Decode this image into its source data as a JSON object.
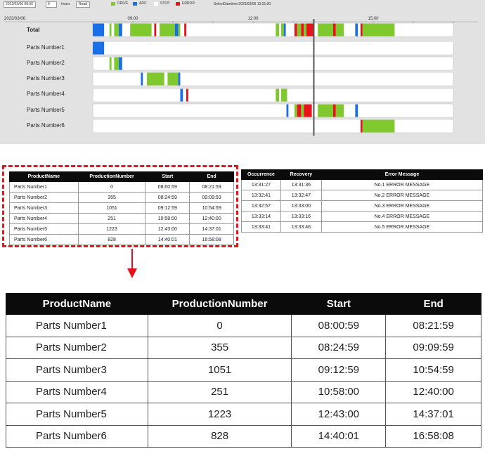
{
  "toolbar": {
    "date_value": "2023/03/06 08:00",
    "hours_value": "9",
    "hours_label": "hours",
    "read_button": "Read",
    "select_datetime": "SelectDatetime:2023/03/06 13:31:00"
  },
  "legend": [
    {
      "label": "DRIVE",
      "color": "#7fc92f"
    },
    {
      "label": "ADC",
      "color": "#1a6fe6"
    },
    {
      "label": "STOP",
      "color": "#ffffff"
    },
    {
      "label": "ERROR",
      "color": "#e8131a"
    }
  ],
  "timeline": {
    "date": "2023/03/06",
    "ticks": [
      "09:00",
      "12:00",
      "15:00"
    ],
    "rows": [
      {
        "label": "Total",
        "segments": [
          {
            "s": "08:00:00",
            "e": "08:17:00",
            "state": "ADC"
          },
          {
            "s": "08:25:00",
            "e": "08:28:00",
            "state": "DRIVE"
          },
          {
            "s": "08:28:00",
            "e": "08:32:00",
            "state": "STOP"
          },
          {
            "s": "08:32:00",
            "e": "08:39:00",
            "state": "DRIVE"
          },
          {
            "s": "08:39:00",
            "e": "08:44:00",
            "state": "ADC"
          },
          {
            "s": "08:56:00",
            "e": "09:28:00",
            "state": "DRIVE"
          },
          {
            "s": "09:32:00",
            "e": "09:35:00",
            "state": "ERROR"
          },
          {
            "s": "09:40:00",
            "e": "10:03:00",
            "state": "DRIVE"
          },
          {
            "s": "10:03:00",
            "e": "10:08:00",
            "state": "ADC"
          },
          {
            "s": "10:08:00",
            "e": "10:11:00",
            "state": "DRIVE"
          },
          {
            "s": "10:17:00",
            "e": "10:20:00",
            "state": "ERROR"
          },
          {
            "s": "12:34:00",
            "e": "12:39:00",
            "state": "DRIVE"
          },
          {
            "s": "12:42:00",
            "e": "12:46:00",
            "state": "DRIVE"
          },
          {
            "s": "12:46:00",
            "e": "12:49:00",
            "state": "ADC"
          },
          {
            "s": "13:02:00",
            "e": "13:06:00",
            "state": "ERROR"
          },
          {
            "s": "13:06:00",
            "e": "13:12:00",
            "state": "DRIVE"
          },
          {
            "s": "13:12:00",
            "e": "13:16:00",
            "state": "ERROR"
          },
          {
            "s": "13:16:00",
            "e": "13:20:00",
            "state": "DRIVE"
          },
          {
            "s": "13:20:00",
            "e": "13:31:00",
            "state": "ERROR"
          },
          {
            "s": "13:37:00",
            "e": "14:00:00",
            "state": "DRIVE"
          },
          {
            "s": "14:00:00",
            "e": "14:04:00",
            "state": "ERROR"
          },
          {
            "s": "14:04:00",
            "e": "14:16:00",
            "state": "DRIVE"
          },
          {
            "s": "14:33:00",
            "e": "14:37:00",
            "state": "ADC"
          },
          {
            "s": "14:37:00",
            "e": "14:41:00",
            "state": "STOP"
          },
          {
            "s": "14:41:00",
            "e": "14:44:00",
            "state": "ERROR"
          },
          {
            "s": "14:44:00",
            "e": "14:50:00",
            "state": "DRIVE"
          },
          {
            "s": "14:50:00",
            "e": "15:32:00",
            "state": "DRIVE"
          }
        ]
      },
      {
        "label": "Parts Number1",
        "segments": [
          {
            "s": "08:00:00",
            "e": "08:17:00",
            "state": "ADC"
          }
        ]
      },
      {
        "label": "Parts Number2",
        "segments": [
          {
            "s": "08:25:00",
            "e": "08:28:00",
            "state": "DRIVE"
          },
          {
            "s": "08:32:00",
            "e": "08:39:00",
            "state": "DRIVE"
          },
          {
            "s": "08:39:00",
            "e": "08:44:00",
            "state": "ADC"
          }
        ]
      },
      {
        "label": "Parts Number3",
        "segments": [
          {
            "s": "09:12:00",
            "e": "09:15:00",
            "state": "ADC"
          },
          {
            "s": "09:21:00",
            "e": "09:47:00",
            "state": "DRIVE"
          },
          {
            "s": "09:52:00",
            "e": "10:08:00",
            "state": "DRIVE"
          },
          {
            "s": "10:08:00",
            "e": "10:11:00",
            "state": "ADC"
          }
        ]
      },
      {
        "label": "Parts Number4",
        "segments": [
          {
            "s": "10:11:00",
            "e": "10:15:00",
            "state": "ADC"
          },
          {
            "s": "10:20:00",
            "e": "10:23:00",
            "state": "ERROR"
          },
          {
            "s": "12:34:00",
            "e": "12:39:00",
            "state": "DRIVE"
          },
          {
            "s": "12:42:00",
            "e": "12:51:00",
            "state": "DRIVE"
          }
        ]
      },
      {
        "label": "Parts Number5",
        "segments": [
          {
            "s": "12:50:00",
            "e": "12:53:00",
            "state": "ADC"
          },
          {
            "s": "13:02:00",
            "e": "13:06:00",
            "state": "DRIVE"
          },
          {
            "s": "13:06:00",
            "e": "13:12:00",
            "state": "ERROR"
          },
          {
            "s": "13:12:00",
            "e": "13:16:00",
            "state": "DRIVE"
          },
          {
            "s": "13:16:00",
            "e": "13:28:00",
            "state": "ERROR"
          },
          {
            "s": "13:37:00",
            "e": "14:00:00",
            "state": "DRIVE"
          },
          {
            "s": "14:00:00",
            "e": "14:04:00",
            "state": "ERROR"
          },
          {
            "s": "14:04:00",
            "e": "14:16:00",
            "state": "DRIVE"
          },
          {
            "s": "14:33:00",
            "e": "14:37:00",
            "state": "ADC"
          }
        ]
      },
      {
        "label": "Parts Number6",
        "segments": [
          {
            "s": "14:41:00",
            "e": "14:44:00",
            "state": "ERROR"
          },
          {
            "s": "14:44:00",
            "e": "14:50:00",
            "state": "DRIVE"
          },
          {
            "s": "14:50:00",
            "e": "15:32:00",
            "state": "DRIVE"
          }
        ]
      }
    ],
    "cursor_time": "13:31:00"
  },
  "production_table": {
    "headers": [
      "ProductName",
      "ProductionNumber",
      "Start",
      "End"
    ],
    "rows": [
      [
        "Parts Number1",
        "0",
        "08:00:59",
        "08:21:59"
      ],
      [
        "Parts Number2",
        "355",
        "08:24:59",
        "09:09:59"
      ],
      [
        "Parts Number3",
        "1051",
        "09:12:59",
        "10:54:59"
      ],
      [
        "Parts Number4",
        "251",
        "10:58:00",
        "12:40:00"
      ],
      [
        "Parts Number5",
        "1223",
        "12:43:00",
        "14:37:01"
      ],
      [
        "Parts Number6",
        "828",
        "14:40:01",
        "16:58:08"
      ]
    ]
  },
  "error_table": {
    "headers": [
      "Occurrence",
      "Recovery",
      "Error Message"
    ],
    "rows": [
      [
        "13:31:27",
        "13:31:36",
        "No.1 ERROR MESSAGE"
      ],
      [
        "13:32:41",
        "13:32:47",
        "No.2 ERROR MESSAGE"
      ],
      [
        "13:32:57",
        "13:33:00",
        "No.3 ERROR MESSAGE"
      ],
      [
        "13:33:14",
        "13:33:16",
        "No.4 ERROR MESSAGE"
      ],
      [
        "13:33:41",
        "13:33:46",
        "No.5 ERROR MESSAGE"
      ]
    ]
  },
  "colors": {
    "DRIVE": "#7fc92f",
    "ADC": "#1a6fe6",
    "STOP": "#ffffff",
    "ERROR": "#e8131a",
    "highlight": "#e8131a"
  }
}
